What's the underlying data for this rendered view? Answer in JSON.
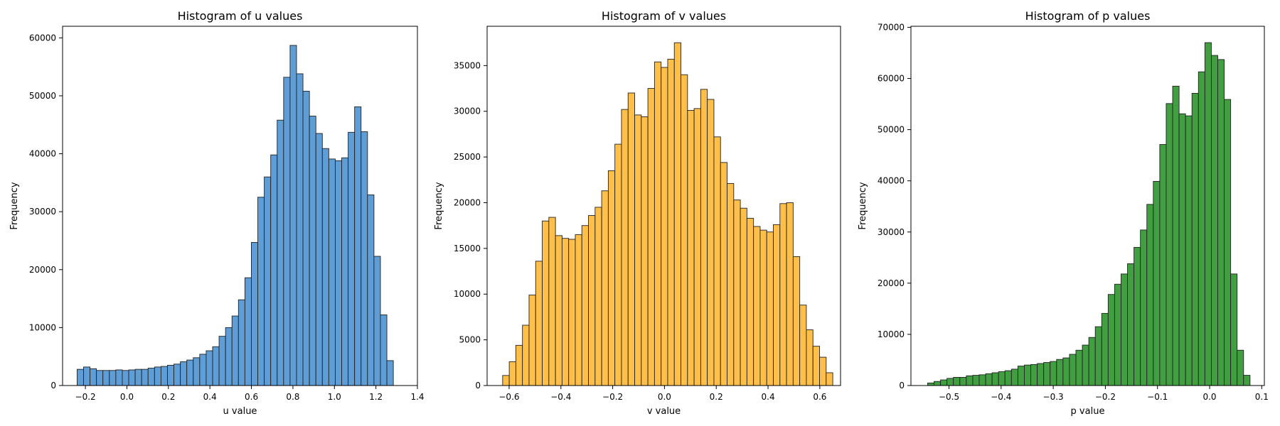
{
  "chart_data": [
    {
      "type": "bar",
      "title": "Histogram of u values",
      "xlabel": "u value",
      "ylabel": "Frequency",
      "color": "#5b9bd5",
      "edge_color": "#222222",
      "xlim": [
        -0.31,
        1.4
      ],
      "ylim": [
        0,
        62000
      ],
      "xticks": [
        -0.2,
        0.0,
        0.2,
        0.4,
        0.6,
        0.8,
        1.0,
        1.2,
        1.4
      ],
      "xtick_labels": [
        "−0.2",
        "0.0",
        "0.2",
        "0.4",
        "0.6",
        "0.8",
        "1.0",
        "1.2",
        "1.4"
      ],
      "yticks": [
        0,
        10000,
        20000,
        30000,
        40000,
        50000,
        60000
      ],
      "ytick_labels": [
        "0",
        "10000",
        "20000",
        "30000",
        "40000",
        "50000",
        "60000"
      ],
      "bin_start": -0.24,
      "bin_width": 0.0311,
      "values": [
        2800,
        3200,
        2900,
        2600,
        2600,
        2600,
        2700,
        2600,
        2700,
        2800,
        2800,
        3000,
        3200,
        3300,
        3500,
        3700,
        4100,
        4400,
        4800,
        5400,
        6000,
        6700,
        8500,
        10000,
        12000,
        14800,
        18600,
        24700,
        32500,
        36000,
        39800,
        45800,
        53200,
        58700,
        53800,
        50800,
        46500,
        43500,
        40900,
        39100,
        38800,
        39300,
        43700,
        48100,
        43800,
        32900,
        22300,
        12200,
        4300
      ]
    },
    {
      "type": "bar",
      "title": "Histogram of v values",
      "xlabel": "v value",
      "ylabel": "Frequency",
      "color": "#ffbe45",
      "edge_color": "#222222",
      "xlim": [
        -0.685,
        0.68
      ],
      "ylim": [
        0,
        39300
      ],
      "xticks": [
        -0.6,
        -0.4,
        -0.2,
        0.0,
        0.2,
        0.4,
        0.6
      ],
      "xtick_labels": [
        "−0.6",
        "−0.4",
        "−0.2",
        "0.0",
        "0.2",
        "0.4",
        "0.6"
      ],
      "yticks": [
        0,
        5000,
        10000,
        15000,
        20000,
        25000,
        30000,
        35000
      ],
      "ytick_labels": [
        "0",
        "5000",
        "10000",
        "15000",
        "20000",
        "25000",
        "30000",
        "35000"
      ],
      "bin_start": -0.625,
      "bin_width": 0.0255,
      "values": [
        1100,
        2600,
        4400,
        6600,
        9900,
        13600,
        18000,
        18400,
        16400,
        16100,
        16000,
        16500,
        17500,
        18600,
        19500,
        21300,
        23500,
        26400,
        30200,
        32000,
        29600,
        29400,
        32500,
        35400,
        34800,
        35700,
        37500,
        34000,
        30100,
        30300,
        32400,
        31300,
        27200,
        24400,
        22100,
        20300,
        19400,
        18300,
        17400,
        17000,
        16800,
        17600,
        19900,
        20000,
        14100,
        8800,
        6100,
        4300,
        3100,
        1400
      ]
    },
    {
      "type": "bar",
      "title": "Histogram of p values",
      "xlabel": "p value",
      "ylabel": "Frequency",
      "color": "#3d9c3d",
      "edge_color": "#222222",
      "xlim": [
        -0.573,
        0.105
      ],
      "ylim": [
        0,
        70200
      ],
      "xticks": [
        -0.5,
        -0.4,
        -0.3,
        -0.2,
        -0.1,
        0.0,
        0.1
      ],
      "xtick_labels": [
        "−0.5",
        "−0.4",
        "−0.3",
        "−0.2",
        "−0.1",
        "0.0",
        "0.1"
      ],
      "yticks": [
        0,
        10000,
        20000,
        30000,
        40000,
        50000,
        60000,
        70000
      ],
      "ytick_labels": [
        "0",
        "10000",
        "20000",
        "30000",
        "40000",
        "50000",
        "60000",
        "70000"
      ],
      "bin_start": -0.541,
      "bin_width": 0.01237,
      "values": [
        500,
        800,
        1100,
        1400,
        1600,
        1600,
        1900,
        2000,
        2100,
        2300,
        2500,
        2700,
        2900,
        3200,
        3800,
        4000,
        4100,
        4300,
        4500,
        4700,
        5100,
        5400,
        6100,
        6900,
        7900,
        9400,
        11500,
        14100,
        17800,
        19800,
        21800,
        23800,
        27000,
        30400,
        35400,
        39900,
        47100,
        55100,
        58500,
        53100,
        52700,
        57100,
        61300,
        67000,
        64500,
        63700,
        55900,
        21800,
        6900,
        2000
      ]
    }
  ]
}
